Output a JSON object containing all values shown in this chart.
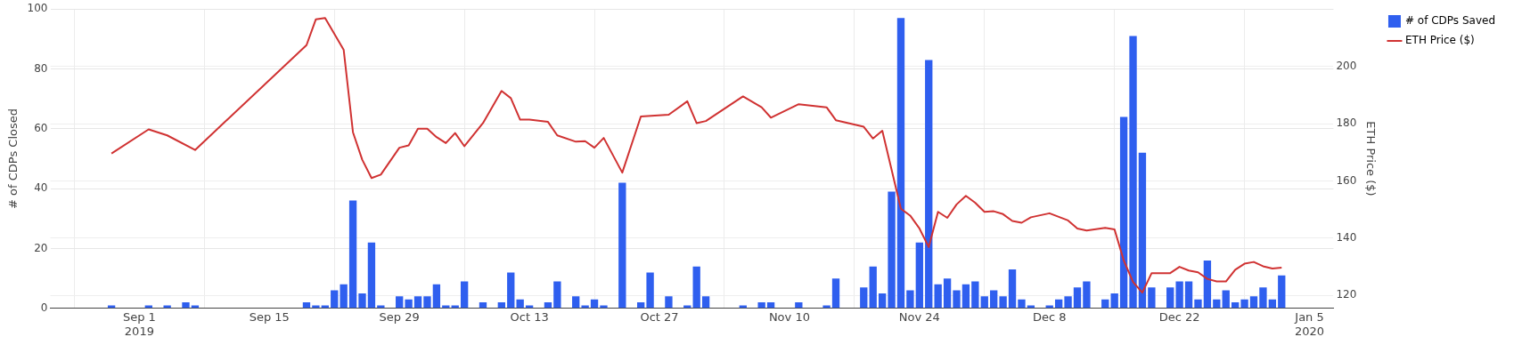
{
  "chart_data": {
    "type": "bar",
    "ylabel": "# of CDPs Closed",
    "y2label": "ETH Price ($)",
    "xlim": [
      "2019-08-22T10:00",
      "2020-01-07T14:00"
    ],
    "xticks": [
      {
        "value": "2019-09-01",
        "label": "Sep 1\n2019"
      },
      {
        "value": "2019-09-15",
        "label": "Sep 15"
      },
      {
        "value": "2019-09-29",
        "label": "Sep 29"
      },
      {
        "value": "2019-10-13",
        "label": "Oct 13"
      },
      {
        "value": "2019-10-27",
        "label": "Oct 27"
      },
      {
        "value": "2019-11-10",
        "label": "Nov 10"
      },
      {
        "value": "2019-11-24",
        "label": "Nov 24"
      },
      {
        "value": "2019-12-08",
        "label": "Dec 8"
      },
      {
        "value": "2019-12-22",
        "label": "Dec 22"
      },
      {
        "value": "2020-01-05",
        "label": "Jan 5\n2020"
      }
    ],
    "ylim": [
      0,
      100
    ],
    "yticks": [
      0,
      20,
      40,
      60,
      80,
      100
    ],
    "y2lim": [
      115.5,
      220
    ],
    "y2ticks": [
      120,
      140,
      160,
      180,
      200
    ],
    "grid": true,
    "legend": "top right",
    "series": [
      {
        "name": "# of CDPs Saved",
        "color": "#2f5fef",
        "x": [
          "2019-08-29",
          "2019-09-02",
          "2019-09-04",
          "2019-09-06",
          "2019-09-07",
          "2019-09-19",
          "2019-09-20",
          "2019-09-21",
          "2019-09-22",
          "2019-09-23",
          "2019-09-24",
          "2019-09-25",
          "2019-09-26",
          "2019-09-27",
          "2019-09-29",
          "2019-09-30",
          "2019-10-01",
          "2019-10-02",
          "2019-10-03",
          "2019-10-04",
          "2019-10-05",
          "2019-10-06",
          "2019-10-08",
          "2019-10-10",
          "2019-10-11",
          "2019-10-12",
          "2019-10-13",
          "2019-10-15",
          "2019-10-16",
          "2019-10-18",
          "2019-10-19",
          "2019-10-20",
          "2019-10-21",
          "2019-10-23",
          "2019-10-25",
          "2019-10-26",
          "2019-10-28",
          "2019-10-30",
          "2019-10-31",
          "2019-11-01",
          "2019-11-05",
          "2019-11-07",
          "2019-11-08",
          "2019-11-11",
          "2019-11-14",
          "2019-11-15",
          "2019-11-18",
          "2019-11-19",
          "2019-11-20",
          "2019-11-21",
          "2019-11-22",
          "2019-11-23",
          "2019-11-24",
          "2019-11-25",
          "2019-11-26",
          "2019-11-27",
          "2019-11-28",
          "2019-11-29",
          "2019-11-30",
          "2019-12-01",
          "2019-12-02",
          "2019-12-03",
          "2019-12-04",
          "2019-12-05",
          "2019-12-06",
          "2019-12-08",
          "2019-12-09",
          "2019-12-10",
          "2019-12-11",
          "2019-12-12",
          "2019-12-14",
          "2019-12-15",
          "2019-12-16",
          "2019-12-17",
          "2019-12-18",
          "2019-12-19",
          "2019-12-21",
          "2019-12-22",
          "2019-12-23",
          "2019-12-24",
          "2019-12-25",
          "2019-12-26",
          "2019-12-27",
          "2019-12-28",
          "2019-12-29",
          "2019-12-30",
          "2019-12-31",
          "2020-01-01",
          "2020-01-02"
        ],
        "values": [
          1,
          1,
          1,
          2,
          1,
          2,
          1,
          1,
          6,
          8,
          36,
          5,
          22,
          1,
          4,
          3,
          4,
          4,
          8,
          1,
          1,
          9,
          2,
          2,
          12,
          3,
          1,
          2,
          9,
          4,
          1,
          3,
          1,
          42,
          2,
          12,
          4,
          1,
          14,
          4,
          1,
          2,
          2,
          2,
          1,
          10,
          7,
          14,
          5,
          39,
          97,
          6,
          22,
          83,
          8,
          10,
          6,
          8,
          9,
          4,
          6,
          4,
          13,
          3,
          1,
          1,
          3,
          4,
          7,
          9,
          3,
          5,
          64,
          91,
          52,
          7,
          7,
          9,
          9,
          3,
          16,
          3,
          6,
          2,
          3,
          4,
          7,
          3,
          11
        ]
      },
      {
        "name": "ETH Price ($)",
        "type": "line",
        "axis": "y2",
        "color": "#d03232",
        "x": [
          "2019-08-29",
          "2019-09-02",
          "2019-09-04",
          "2019-09-07",
          "2019-09-19",
          "2019-09-20",
          "2019-09-21",
          "2019-09-23",
          "2019-09-24",
          "2019-09-25",
          "2019-09-26",
          "2019-09-27",
          "2019-09-29",
          "2019-09-30",
          "2019-10-01",
          "2019-10-02",
          "2019-10-03",
          "2019-10-04",
          "2019-10-05",
          "2019-10-06",
          "2019-10-08",
          "2019-10-10",
          "2019-10-11",
          "2019-10-12",
          "2019-10-13",
          "2019-10-15",
          "2019-10-16",
          "2019-10-18",
          "2019-10-19",
          "2019-10-20",
          "2019-10-21",
          "2019-10-23",
          "2019-10-25",
          "2019-10-28",
          "2019-10-30",
          "2019-10-31",
          "2019-11-01",
          "2019-11-05",
          "2019-11-07",
          "2019-11-08",
          "2019-11-11",
          "2019-11-14",
          "2019-11-15",
          "2019-11-18",
          "2019-11-19",
          "2019-11-20",
          "2019-11-22",
          "2019-11-23",
          "2019-11-24",
          "2019-11-25",
          "2019-11-26",
          "2019-11-27",
          "2019-11-28",
          "2019-11-29",
          "2019-11-30",
          "2019-12-01",
          "2019-12-02",
          "2019-12-03",
          "2019-12-04",
          "2019-12-05",
          "2019-12-06",
          "2019-12-08",
          "2019-12-10",
          "2019-12-11",
          "2019-12-12",
          "2019-12-14",
          "2019-12-15",
          "2019-12-16",
          "2019-12-17",
          "2019-12-18",
          "2019-12-19",
          "2019-12-21",
          "2019-12-22",
          "2019-12-23",
          "2019-12-24",
          "2019-12-25",
          "2019-12-26",
          "2019-12-27",
          "2019-12-28",
          "2019-12-29",
          "2019-12-30",
          "2019-12-31",
          "2020-01-01",
          "2020-01-02"
        ],
        "values": [
          169.6,
          178,
          175.9,
          170.8,
          207.4,
          216.4,
          216.9,
          205.8,
          177,
          167.4,
          161,
          162.2,
          171.6,
          172.4,
          178.2,
          178.2,
          175.3,
          173.2,
          176.7,
          172.1,
          180.2,
          191.4,
          188.9,
          181.4,
          181.4,
          180.6,
          175.9,
          173.7,
          173.9,
          171.6,
          175,
          162.9,
          182.5,
          183.1,
          187.8,
          180.2,
          180.9,
          189.5,
          185.7,
          182.1,
          186.8,
          185.7,
          181.2,
          178.9,
          174.8,
          177.5,
          150.3,
          147.9,
          143.4,
          136.9,
          149.2,
          147.1,
          151.8,
          154.8,
          152.4,
          149.2,
          149.4,
          148.4,
          146,
          145.4,
          147.3,
          148.7,
          146.2,
          143.4,
          142.7,
          143.6,
          143.1,
          132.2,
          124.7,
          121,
          127.8,
          127.8,
          130,
          128.7,
          128.1,
          125.8,
          124.9,
          124.9,
          129,
          131.1,
          131.7,
          130.2,
          129.4,
          129.7
        ]
      }
    ]
  }
}
